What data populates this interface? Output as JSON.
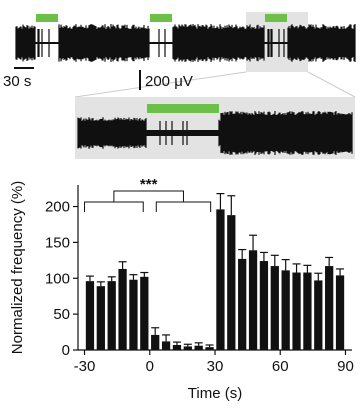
{
  "colors": {
    "trace": "#111111",
    "stim_bar": "#6cc04a",
    "highlight_box": "#e3e3e3",
    "bar_fill": "#111111"
  },
  "scale_bars": {
    "time_label": "30 s",
    "voltage_label": "200 μV"
  },
  "chart_data": {
    "type": "bar",
    "xlabel": "Time (s)",
    "ylabel": "Normalized frequency (%)",
    "xlim": [
      -33,
      93
    ],
    "ylim": [
      0,
      230
    ],
    "x_ticks": [
      "-30",
      "0",
      "30",
      "60",
      "90"
    ],
    "y_ticks": [
      "0",
      "50",
      "100",
      "150",
      "200"
    ],
    "bin_width_s": 5,
    "x": [
      -30,
      -25,
      -20,
      -15,
      -10,
      -5,
      0,
      5,
      10,
      15,
      20,
      25,
      30,
      35,
      40,
      45,
      50,
      55,
      60,
      65,
      70,
      75,
      80,
      85
    ],
    "values": [
      96,
      89,
      96,
      113,
      98,
      102,
      21,
      12,
      7,
      5,
      6,
      4,
      196,
      188,
      127,
      139,
      124,
      117,
      111,
      108,
      108,
      97,
      117,
      104
    ],
    "errors": [
      7,
      6,
      6,
      10,
      7,
      6,
      10,
      9,
      4,
      3,
      4,
      3,
      22,
      27,
      13,
      21,
      12,
      15,
      15,
      12,
      10,
      10,
      12,
      9
    ],
    "significance": {
      "label": "***",
      "compared": [
        "-30 to 0 s",
        "0 to 30 s"
      ]
    },
    "stimulus_window_s": [
      0,
      30
    ],
    "grid": false,
    "legend": "none"
  }
}
